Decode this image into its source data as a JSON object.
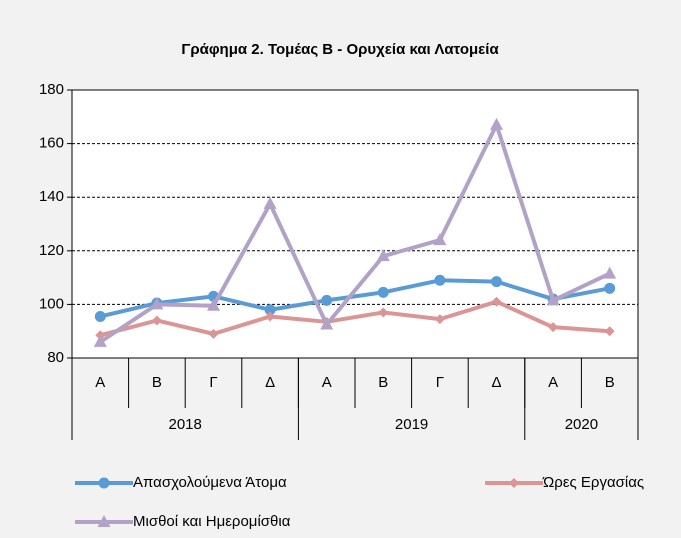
{
  "chart_data": {
    "type": "line",
    "title": "Γράφημα 2. Τομέας Β - Ορυχεία και Λατομεία",
    "categories": [
      "Α",
      "Β",
      "Γ",
      "Δ",
      "Α",
      "Β",
      "Γ",
      "Δ",
      "Α",
      "Β"
    ],
    "x_groups": [
      {
        "label": "2018",
        "count": 4
      },
      {
        "label": "2019",
        "count": 4
      },
      {
        "label": "2020",
        "count": 2
      }
    ],
    "series": [
      {
        "name": "Απασχολούμενα Άτομα",
        "color": "#5b9bd5",
        "marker": "circle",
        "values": [
          95.5,
          100.5,
          103,
          98,
          101.5,
          104.5,
          109,
          108.5,
          102,
          106
        ]
      },
      {
        "name": "Ώρες Εργασίας",
        "color": "#d99694",
        "marker": "diamond",
        "values": [
          88.5,
          94,
          89,
          95.5,
          93.5,
          97,
          94.5,
          101,
          91.5,
          90
        ]
      },
      {
        "name": "Μισθοί και Ημερομίσθια",
        "color": "#b3a2c7",
        "marker": "triangle",
        "values": [
          86,
          100,
          99.5,
          137.5,
          92.5,
          118,
          124,
          167,
          101.5,
          111.5
        ]
      }
    ],
    "ylim": [
      80,
      180
    ],
    "yticks": [
      80,
      100,
      120,
      140,
      160,
      180
    ],
    "grid": true,
    "legend": "bottom"
  }
}
